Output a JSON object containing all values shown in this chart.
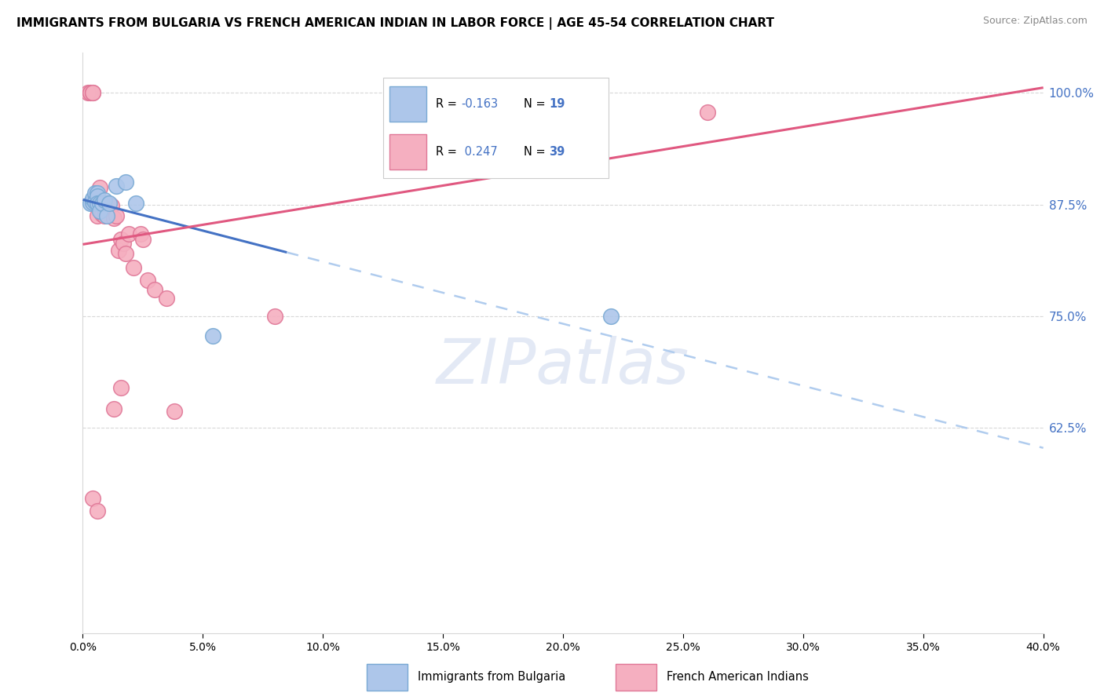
{
  "title": "IMMIGRANTS FROM BULGARIA VS FRENCH AMERICAN INDIAN IN LABOR FORCE | AGE 45-54 CORRELATION CHART",
  "source": "Source: ZipAtlas.com",
  "ylabel": "In Labor Force | Age 45-54",
  "xmin": 0.0,
  "xmax": 0.4,
  "ymin": 0.395,
  "ymax": 1.045,
  "yticks": [
    0.625,
    0.75,
    0.875,
    1.0
  ],
  "ytick_labels": [
    "62.5%",
    "75.0%",
    "87.5%",
    "100.0%"
  ],
  "xticks": [
    0.0,
    0.05,
    0.1,
    0.15,
    0.2,
    0.25,
    0.3,
    0.35,
    0.4
  ],
  "xtick_labels": [
    "0.0%",
    "5.0%",
    "10.0%",
    "15.0%",
    "20.0%",
    "25.0%",
    "30.0%",
    "35.0%",
    "40.0%"
  ],
  "legend_blue_r": "-0.163",
  "legend_blue_n": "19",
  "legend_pink_r": "0.247",
  "legend_pink_n": "39",
  "legend_label_blue": "Immigrants from Bulgaria",
  "legend_label_pink": "French American Indians",
  "watermark_text": "ZIPatlas",
  "blue_x": [
    0.003,
    0.004,
    0.004,
    0.005,
    0.005,
    0.006,
    0.006,
    0.006,
    0.007,
    0.007,
    0.008,
    0.009,
    0.01,
    0.011,
    0.014,
    0.018,
    0.022,
    0.054,
    0.22
  ],
  "blue_y": [
    0.876,
    0.877,
    0.882,
    0.888,
    0.878,
    0.888,
    0.884,
    0.876,
    0.876,
    0.868,
    0.876,
    0.88,
    0.862,
    0.876,
    0.896,
    0.9,
    0.876,
    0.728,
    0.75
  ],
  "pink_x": [
    0.002,
    0.003,
    0.003,
    0.004,
    0.004,
    0.005,
    0.005,
    0.006,
    0.006,
    0.007,
    0.007,
    0.008,
    0.008,
    0.009,
    0.009,
    0.01,
    0.011,
    0.012,
    0.013,
    0.014,
    0.015,
    0.016,
    0.017,
    0.018,
    0.019,
    0.021,
    0.024,
    0.025,
    0.027,
    0.03,
    0.035,
    0.038,
    0.004,
    0.006,
    0.08,
    0.18,
    0.26,
    0.016,
    0.013
  ],
  "pink_y": [
    1.0,
    1.0,
    1.0,
    1.0,
    1.0,
    0.882,
    0.876,
    0.876,
    0.862,
    0.894,
    0.874,
    0.872,
    0.864,
    0.87,
    0.862,
    0.876,
    0.872,
    0.874,
    0.86,
    0.862,
    0.824,
    0.836,
    0.832,
    0.82,
    0.842,
    0.804,
    0.842,
    0.836,
    0.79,
    0.78,
    0.77,
    0.644,
    0.546,
    0.532,
    0.75,
    1.0,
    0.978,
    0.67,
    0.646
  ],
  "blue_color": "#adc6ea",
  "pink_color": "#f5afc0",
  "blue_edge_color": "#7aaad4",
  "pink_edge_color": "#e07898",
  "blue_line_color": "#4472c4",
  "pink_line_color": "#e05880",
  "blue_dash_color": "#b0ccee",
  "grid_color": "#d8d8d8",
  "right_axis_tick_color": "#4472c4",
  "watermark_color": "#ccd8ee",
  "bg_color": "#ffffff"
}
